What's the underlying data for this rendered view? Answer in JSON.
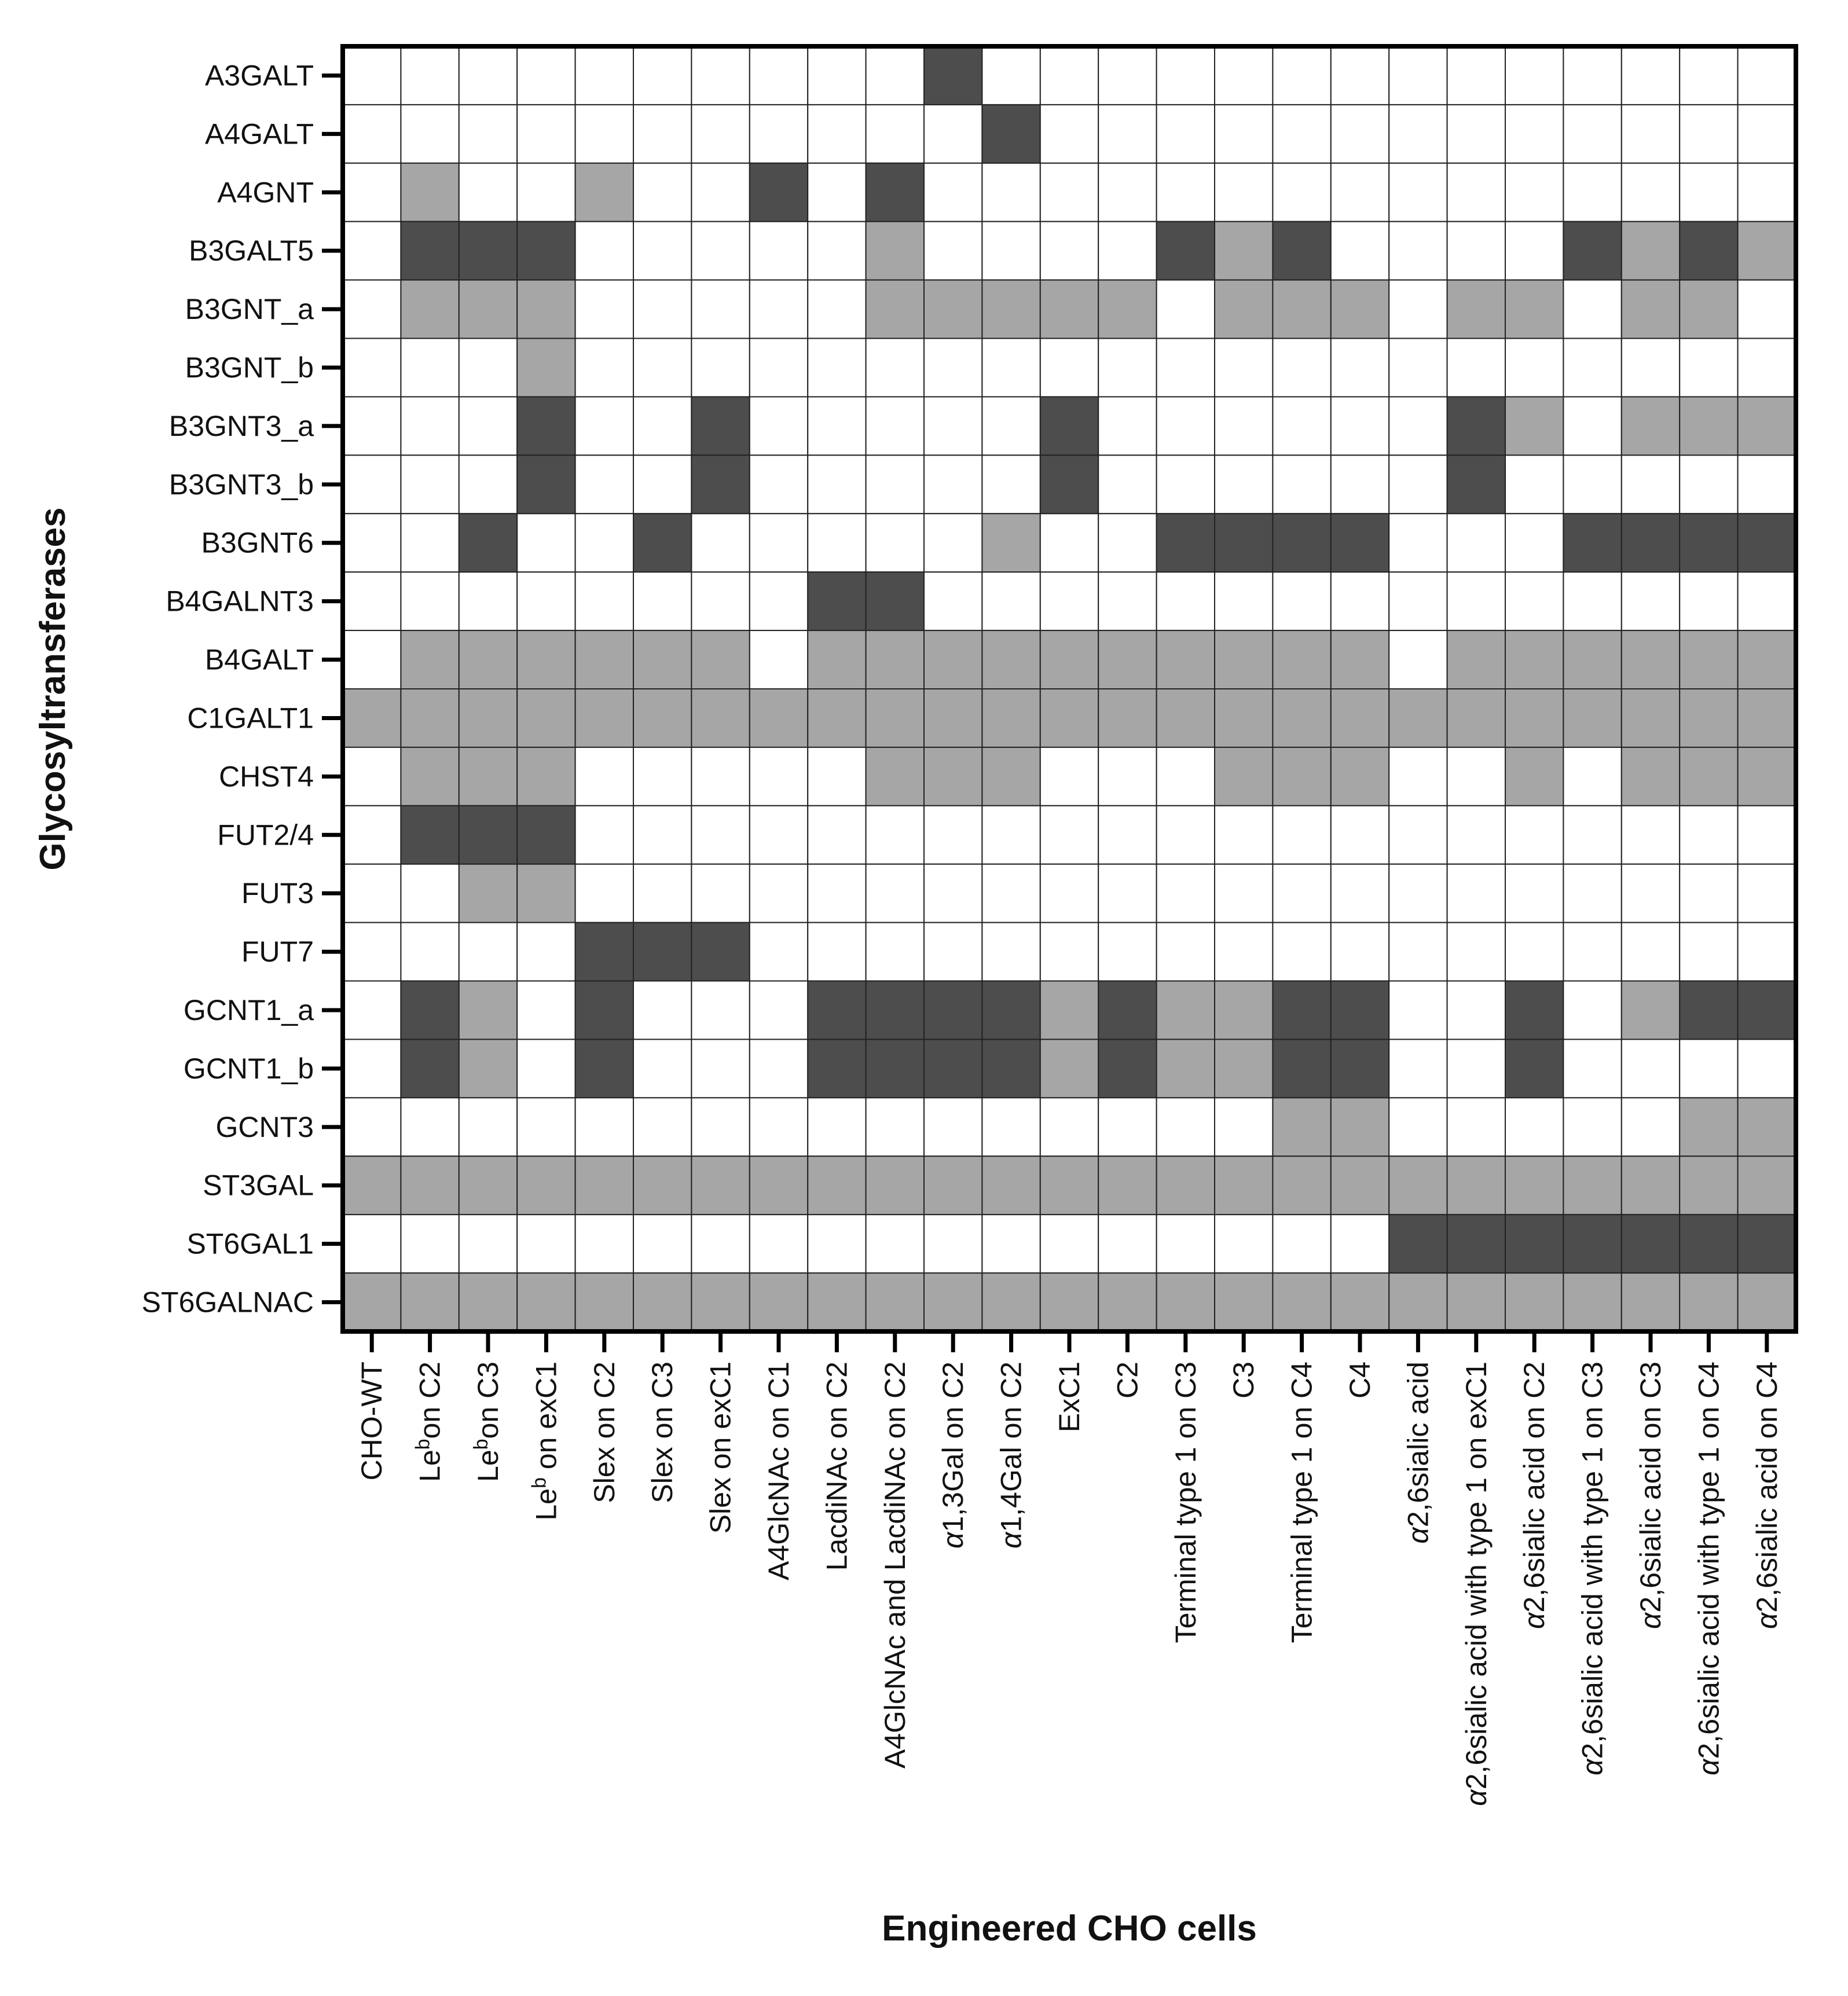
{
  "chart_data": {
    "type": "heatmap",
    "title": "",
    "xlabel": "Engineered CHO cells",
    "ylabel": "Glycosyltransferases",
    "level_meaning": {
      "0": "white",
      "1": "light grey",
      "2": "dark grey"
    },
    "colors": {
      "0": "#ffffff",
      "1": "#a6a6a6",
      "2": "#4d4d4d",
      "grid": "#222222",
      "frame": "#000000"
    },
    "rows": [
      "A3GALT",
      "A4GALT",
      "A4GNT",
      "B3GALT5",
      "B3GNT_a",
      "B3GNT_b",
      "B3GNT3_a",
      "B3GNT3_b",
      "B3GNT6",
      "B4GALNT3",
      "B4GALT",
      "C1GALT1",
      "CHST4",
      "FUT2/4",
      "FUT3",
      "FUT7",
      "GCNT1_a",
      "GCNT1_b",
      "GCNT3",
      "ST3GAL",
      "ST6GAL1",
      "ST6GALNAC"
    ],
    "columns": [
      {
        "label": "CHO-WT"
      },
      {
        "pre": "Le",
        "sup": "b",
        "post": "on C2"
      },
      {
        "pre": "Le",
        "sup": "b",
        "post": "on C3"
      },
      {
        "pre": "Le",
        "sup": "b",
        "post": " on exC1"
      },
      {
        "label": "Slex on C2"
      },
      {
        "label": "Slex on C3"
      },
      {
        "label": "Slex on exC1"
      },
      {
        "label": "A4GlcNAc on C1"
      },
      {
        "label": "LacdiNAc on C2"
      },
      {
        "label": "A4GlcNAc and LacdiNAc on C2"
      },
      {
        "greek": "α",
        "post": "1,3Gal on C2"
      },
      {
        "greek": "α",
        "post": "1,4Gal on C2"
      },
      {
        "label": "ExC1"
      },
      {
        "label": "C2"
      },
      {
        "label": "Terminal type 1 on C3"
      },
      {
        "label": "C3"
      },
      {
        "label": "Terminal type 1 on C4"
      },
      {
        "label": "C4"
      },
      {
        "greek": "α",
        "post": "2,6sialic acid"
      },
      {
        "greek": "α",
        "post": "2,6sialic acid with type 1 on exC1"
      },
      {
        "greek": "α",
        "post": "2,6sialic acid on C2"
      },
      {
        "greek": "α",
        "post": "2,6sialic acid with type 1 on C3"
      },
      {
        "greek": "α",
        "post": "2,6sialic acid on C3"
      },
      {
        "greek": "α",
        "post": "2,6sialic acid with type 1 on C4"
      },
      {
        "greek": "α",
        "post": "2,6sialic acid on C4"
      }
    ],
    "values": [
      [
        0,
        0,
        0,
        0,
        0,
        0,
        0,
        0,
        0,
        0,
        2,
        0,
        0,
        0,
        0,
        0,
        0,
        0,
        0,
        0,
        0,
        0,
        0,
        0,
        0
      ],
      [
        0,
        0,
        0,
        0,
        0,
        0,
        0,
        0,
        0,
        0,
        0,
        2,
        0,
        0,
        0,
        0,
        0,
        0,
        0,
        0,
        0,
        0,
        0,
        0,
        0
      ],
      [
        0,
        1,
        0,
        0,
        1,
        0,
        0,
        2,
        0,
        2,
        0,
        0,
        0,
        0,
        0,
        0,
        0,
        0,
        0,
        0,
        0,
        0,
        0,
        0,
        0
      ],
      [
        0,
        2,
        2,
        2,
        0,
        0,
        0,
        0,
        0,
        1,
        0,
        0,
        0,
        0,
        2,
        1,
        2,
        0,
        0,
        0,
        0,
        2,
        1,
        2,
        1
      ],
      [
        0,
        1,
        1,
        1,
        0,
        0,
        0,
        0,
        0,
        1,
        1,
        1,
        1,
        1,
        0,
        1,
        1,
        1,
        0,
        1,
        1,
        0,
        1,
        1,
        0
      ],
      [
        0,
        0,
        0,
        1,
        0,
        0,
        0,
        0,
        0,
        0,
        0,
        0,
        0,
        0,
        0,
        0,
        0,
        0,
        0,
        0,
        0,
        0,
        0,
        0,
        0
      ],
      [
        0,
        0,
        0,
        2,
        0,
        0,
        2,
        0,
        0,
        0,
        0,
        0,
        2,
        0,
        0,
        0,
        0,
        0,
        0,
        2,
        1,
        0,
        1,
        1,
        1
      ],
      [
        0,
        0,
        0,
        2,
        0,
        0,
        2,
        0,
        0,
        0,
        0,
        0,
        2,
        0,
        0,
        0,
        0,
        0,
        0,
        2,
        0,
        0,
        0,
        0,
        0
      ],
      [
        0,
        0,
        2,
        0,
        0,
        2,
        0,
        0,
        0,
        0,
        0,
        1,
        0,
        0,
        2,
        2,
        2,
        2,
        0,
        0,
        0,
        2,
        2,
        2,
        2
      ],
      [
        0,
        0,
        0,
        0,
        0,
        0,
        0,
        0,
        2,
        2,
        0,
        0,
        0,
        0,
        0,
        0,
        0,
        0,
        0,
        0,
        0,
        0,
        0,
        0,
        0
      ],
      [
        0,
        1,
        1,
        1,
        1,
        1,
        1,
        0,
        1,
        1,
        1,
        1,
        1,
        1,
        1,
        1,
        1,
        1,
        0,
        1,
        1,
        1,
        1,
        1,
        1
      ],
      [
        1,
        1,
        1,
        1,
        1,
        1,
        1,
        1,
        1,
        1,
        1,
        1,
        1,
        1,
        1,
        1,
        1,
        1,
        1,
        1,
        1,
        1,
        1,
        1,
        1
      ],
      [
        0,
        1,
        1,
        1,
        0,
        0,
        0,
        0,
        0,
        1,
        1,
        1,
        0,
        0,
        0,
        1,
        1,
        1,
        0,
        0,
        1,
        0,
        1,
        1,
        1
      ],
      [
        0,
        2,
        2,
        2,
        0,
        0,
        0,
        0,
        0,
        0,
        0,
        0,
        0,
        0,
        0,
        0,
        0,
        0,
        0,
        0,
        0,
        0,
        0,
        0,
        0
      ],
      [
        0,
        0,
        1,
        1,
        0,
        0,
        0,
        0,
        0,
        0,
        0,
        0,
        0,
        0,
        0,
        0,
        0,
        0,
        0,
        0,
        0,
        0,
        0,
        0,
        0
      ],
      [
        0,
        0,
        0,
        0,
        2,
        2,
        2,
        0,
        0,
        0,
        0,
        0,
        0,
        0,
        0,
        0,
        0,
        0,
        0,
        0,
        0,
        0,
        0,
        0,
        0
      ],
      [
        0,
        2,
        1,
        0,
        2,
        0,
        0,
        0,
        2,
        2,
        2,
        2,
        1,
        2,
        1,
        1,
        2,
        2,
        0,
        0,
        2,
        0,
        1,
        2,
        2
      ],
      [
        0,
        2,
        1,
        0,
        2,
        0,
        0,
        0,
        2,
        2,
        2,
        2,
        1,
        2,
        1,
        1,
        2,
        2,
        0,
        0,
        2,
        0,
        0,
        0,
        0
      ],
      [
        0,
        0,
        0,
        0,
        0,
        0,
        0,
        0,
        0,
        0,
        0,
        0,
        0,
        0,
        0,
        0,
        1,
        1,
        0,
        0,
        0,
        0,
        0,
        1,
        1
      ],
      [
        1,
        1,
        1,
        1,
        1,
        1,
        1,
        1,
        1,
        1,
        1,
        1,
        1,
        1,
        1,
        1,
        1,
        1,
        1,
        1,
        1,
        1,
        1,
        1,
        1
      ],
      [
        0,
        0,
        0,
        0,
        0,
        0,
        0,
        0,
        0,
        0,
        0,
        0,
        0,
        0,
        0,
        0,
        0,
        0,
        2,
        2,
        2,
        2,
        2,
        2,
        2
      ],
      [
        1,
        1,
        1,
        1,
        1,
        1,
        1,
        1,
        1,
        1,
        1,
        1,
        1,
        1,
        1,
        1,
        1,
        1,
        1,
        1,
        1,
        1,
        1,
        1,
        1
      ]
    ]
  }
}
